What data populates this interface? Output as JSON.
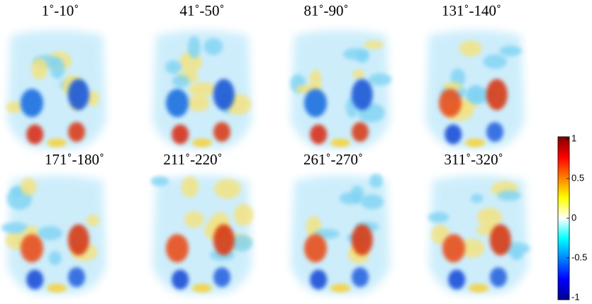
{
  "panels": [
    {
      "label": "1˚-10˚"
    },
    {
      "label": "41˚-50˚"
    },
    {
      "label": "81˚-90˚"
    },
    {
      "label": "131˚-140˚"
    },
    {
      "label": "171˚-180˚"
    },
    {
      "label": "211˚-220˚"
    },
    {
      "label": "261˚-270˚"
    },
    {
      "label": "311˚-320˚"
    }
  ],
  "colorbar": {
    "lim": [
      -1,
      1
    ],
    "ticks": [
      1,
      0.5,
      0,
      -0.5,
      -1
    ]
  }
}
